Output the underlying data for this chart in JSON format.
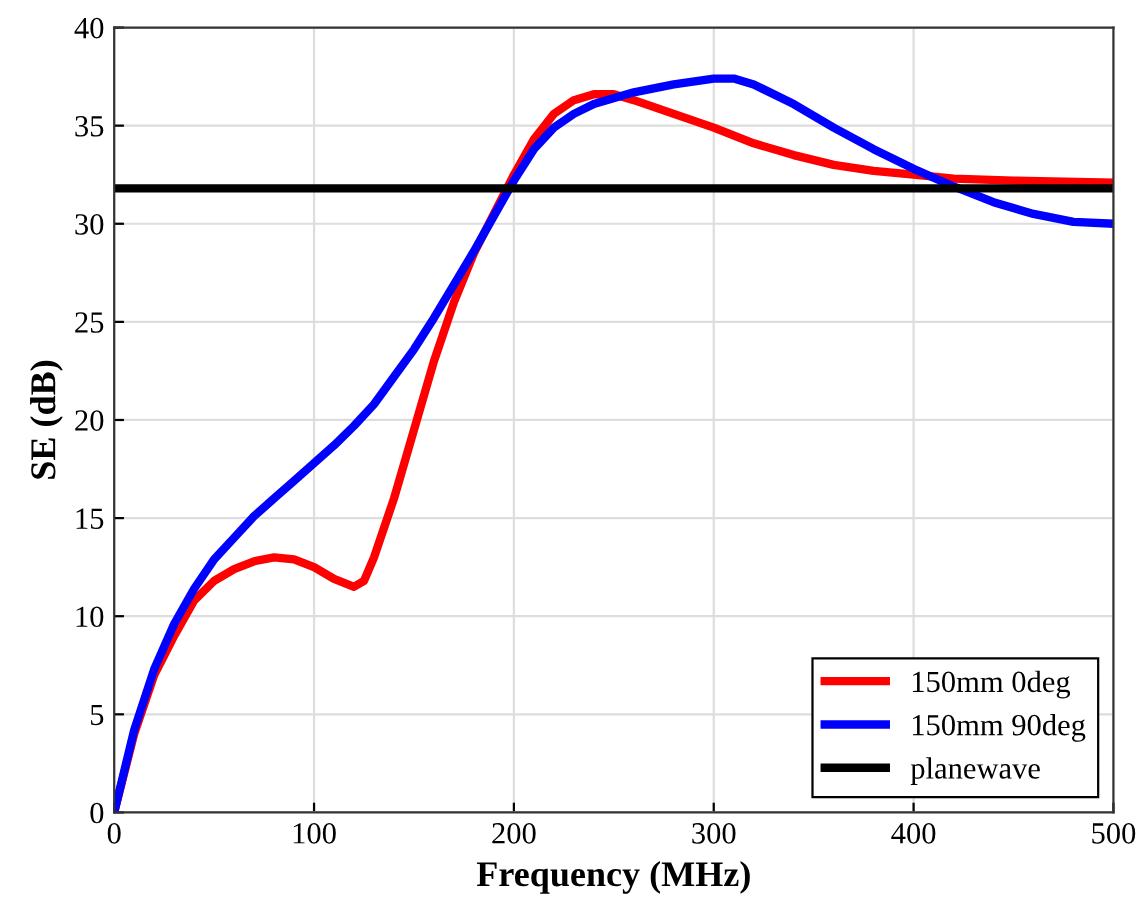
{
  "chart_data": {
    "type": "line",
    "xlabel": "Frequency (MHz)",
    "ylabel": "SE (dB)",
    "xlim": [
      0,
      500
    ],
    "ylim": [
      0,
      40
    ],
    "xticks": [
      0,
      100,
      200,
      300,
      400,
      500
    ],
    "yticks": [
      0,
      5,
      10,
      15,
      20,
      25,
      30,
      35,
      40
    ],
    "grid": true,
    "legend": "bottom right",
    "marker": "none",
    "line_style": "solid",
    "series": [
      {
        "name": "150mm 0deg",
        "color": "#ff0000",
        "x": [
          0,
          10,
          20,
          30,
          40,
          50,
          60,
          70,
          80,
          90,
          100,
          110,
          120,
          125,
          130,
          140,
          150,
          160,
          170,
          180,
          190,
          200,
          210,
          220,
          230,
          240,
          250,
          260,
          280,
          300,
          320,
          340,
          360,
          380,
          400,
          420,
          450,
          500
        ],
        "values": [
          0,
          4,
          7,
          9,
          10.8,
          11.8,
          12.4,
          12.8,
          13,
          12.9,
          12.5,
          11.9,
          11.5,
          11.8,
          13,
          16,
          19.5,
          23,
          26,
          28.5,
          30.5,
          32.5,
          34.3,
          35.6,
          36.3,
          36.6,
          36.6,
          36.3,
          35.6,
          34.9,
          34.1,
          33.5,
          33,
          32.7,
          32.5,
          32.3,
          32.2,
          32.1
        ]
      },
      {
        "name": "150mm 90deg",
        "color": "#0000ff",
        "x": [
          0,
          10,
          20,
          30,
          40,
          50,
          60,
          70,
          80,
          90,
          100,
          110,
          120,
          130,
          140,
          150,
          160,
          170,
          180,
          190,
          200,
          210,
          220,
          230,
          240,
          260,
          280,
          300,
          310,
          320,
          340,
          360,
          380,
          400,
          420,
          440,
          460,
          480,
          500
        ],
        "values": [
          0,
          4.2,
          7.3,
          9.6,
          11.4,
          12.9,
          14,
          15.1,
          16,
          16.9,
          17.8,
          18.7,
          19.7,
          20.8,
          22.2,
          23.6,
          25.2,
          26.9,
          28.6,
          30.4,
          32.2,
          33.8,
          34.9,
          35.6,
          36.1,
          36.7,
          37.1,
          37.4,
          37.4,
          37.1,
          36.1,
          34.9,
          33.8,
          32.8,
          31.9,
          31.1,
          30.5,
          30.1,
          30
        ]
      },
      {
        "name": "planewave",
        "color": "#000000",
        "x": [
          0,
          500
        ],
        "values": [
          31.8,
          31.8
        ]
      }
    ]
  }
}
